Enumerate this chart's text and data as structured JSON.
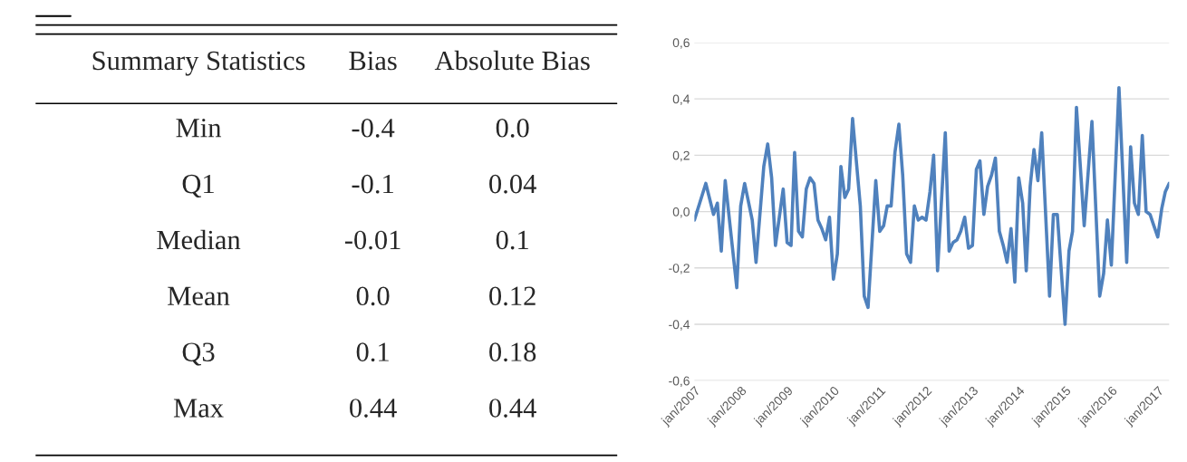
{
  "chart_data": [
    {
      "type": "other",
      "title": "Summary Statistics",
      "categories": [
        "Min",
        "Q1",
        "Median",
        "Mean",
        "Q3",
        "Max"
      ],
      "series": [
        {
          "name": "Bias",
          "values": [
            -0.4,
            -0.1,
            -0.01,
            0.0,
            0.1,
            0.44
          ],
          "value_labels": [
            "-0.4",
            "-0.1",
            "-0.01",
            "0.0",
            "0.1",
            "0.44"
          ]
        },
        {
          "name": "Absolute Bias",
          "values": [
            0.0,
            0.04,
            0.1,
            0.12,
            0.18,
            0.44
          ],
          "value_labels": [
            "0.0",
            "0.04",
            "0.1",
            "0.12",
            "0.18",
            "0.44"
          ]
        }
      ]
    },
    {
      "type": "line",
      "grid": "y",
      "x": [
        "2007-01",
        "2007-04",
        "2007-06",
        "2007-07",
        "2007-08",
        "2007-09",
        "2007-12",
        "2008-01",
        "2008-02",
        "2008-04",
        "2008-05",
        "2008-07",
        "2008-08",
        "2008-09",
        "2008-10",
        "2008-12",
        "2009-01",
        "2009-02",
        "2009-03",
        "2009-04",
        "2009-05",
        "2009-06",
        "2009-07",
        "2009-08",
        "2009-09",
        "2009-10",
        "2009-11",
        "2009-12",
        "2010-01",
        "2010-02",
        "2010-03",
        "2010-04",
        "2010-05",
        "2010-06",
        "2010-08",
        "2010-09",
        "2010-10",
        "2010-12",
        "2011-01",
        "2011-02",
        "2011-03",
        "2011-04",
        "2011-05",
        "2011-06",
        "2011-07",
        "2011-08",
        "2011-09",
        "2011-10",
        "2011-11",
        "2011-12",
        "2012-01",
        "2012-02",
        "2012-03",
        "2012-04",
        "2012-06",
        "2012-07",
        "2012-08",
        "2012-09",
        "2012-10",
        "2012-11",
        "2012-12",
        "2013-01",
        "2013-02",
        "2013-03",
        "2013-04",
        "2013-05",
        "2013-06",
        "2013-07",
        "2013-08",
        "2013-09",
        "2013-10",
        "2013-11",
        "2013-12",
        "2014-01",
        "2014-02",
        "2014-03",
        "2014-04",
        "2014-05",
        "2014-06",
        "2014-07",
        "2014-09",
        "2014-10",
        "2014-11",
        "2015-01",
        "2015-02",
        "2015-03",
        "2015-04",
        "2015-06",
        "2015-08",
        "2015-10",
        "2015-11",
        "2015-12",
        "2016-01",
        "2016-03",
        "2016-05",
        "2016-06",
        "2016-07",
        "2016-08",
        "2016-09",
        "2016-10",
        "2016-11",
        "2016-12",
        "2017-01",
        "2017-02",
        "2017-03",
        "2017-04"
      ],
      "series": [
        {
          "color": "#4f81bd",
          "values": [
            -0.03,
            0.1,
            -0.01,
            0.03,
            -0.14,
            0.11,
            -0.27,
            0.02,
            0.1,
            -0.03,
            -0.18,
            0.16,
            0.24,
            0.12,
            -0.12,
            0.08,
            -0.11,
            -0.12,
            0.21,
            -0.07,
            -0.09,
            0.08,
            0.12,
            0.1,
            -0.03,
            -0.06,
            -0.1,
            -0.02,
            -0.24,
            -0.15,
            0.16,
            0.05,
            0.08,
            0.33,
            0.02,
            -0.3,
            -0.34,
            0.11,
            -0.07,
            -0.05,
            0.02,
            0.02,
            0.21,
            0.31,
            0.13,
            -0.15,
            -0.18,
            0.02,
            -0.03,
            -0.02,
            -0.03,
            0.07,
            0.2,
            -0.21,
            0.28,
            -0.14,
            -0.11,
            -0.1,
            -0.07,
            -0.02,
            -0.13,
            -0.12,
            0.15,
            0.18,
            -0.01,
            0.09,
            0.13,
            0.19,
            -0.07,
            -0.12,
            -0.18,
            -0.06,
            -0.25,
            0.12,
            0.03,
            -0.21,
            0.09,
            0.22,
            0.11,
            0.28,
            -0.3,
            -0.01,
            -0.01,
            -0.4,
            -0.14,
            -0.07,
            0.37,
            -0.05,
            0.32,
            -0.3,
            -0.22,
            -0.03,
            -0.19,
            0.44,
            -0.18,
            0.23,
            0.03,
            -0.01,
            0.27,
            0.0,
            -0.01,
            -0.05,
            -0.09,
            0.01,
            0.07,
            0.1
          ]
        }
      ],
      "xlim": [
        "2007-01",
        "2017-04"
      ],
      "xticks": [
        {
          "value": "2007-01",
          "label": "jan/2007"
        },
        {
          "value": "2008-01",
          "label": "jan/2008"
        },
        {
          "value": "2009-01",
          "label": "jan/2009"
        },
        {
          "value": "2010-01",
          "label": "jan/2010"
        },
        {
          "value": "2011-01",
          "label": "jan/2011"
        },
        {
          "value": "2012-01",
          "label": "jan/2012"
        },
        {
          "value": "2013-01",
          "label": "jan/2013"
        },
        {
          "value": "2014-01",
          "label": "jan/2014"
        },
        {
          "value": "2015-01",
          "label": "jan/2015"
        },
        {
          "value": "2016-01",
          "label": "jan/2016"
        },
        {
          "value": "2017-01",
          "label": "jan/2017"
        }
      ],
      "ylim": [
        -0.6,
        0.6
      ],
      "yticks": [
        {
          "value": -0.6,
          "label": "-0,6"
        },
        {
          "value": -0.4,
          "label": "-0,4"
        },
        {
          "value": -0.2,
          "label": "-0,2"
        },
        {
          "value": 0.0,
          "label": "0,0"
        },
        {
          "value": 0.2,
          "label": "0,2"
        },
        {
          "value": 0.4,
          "label": "0,4"
        },
        {
          "value": 0.6,
          "label": "0,6"
        }
      ]
    }
  ]
}
